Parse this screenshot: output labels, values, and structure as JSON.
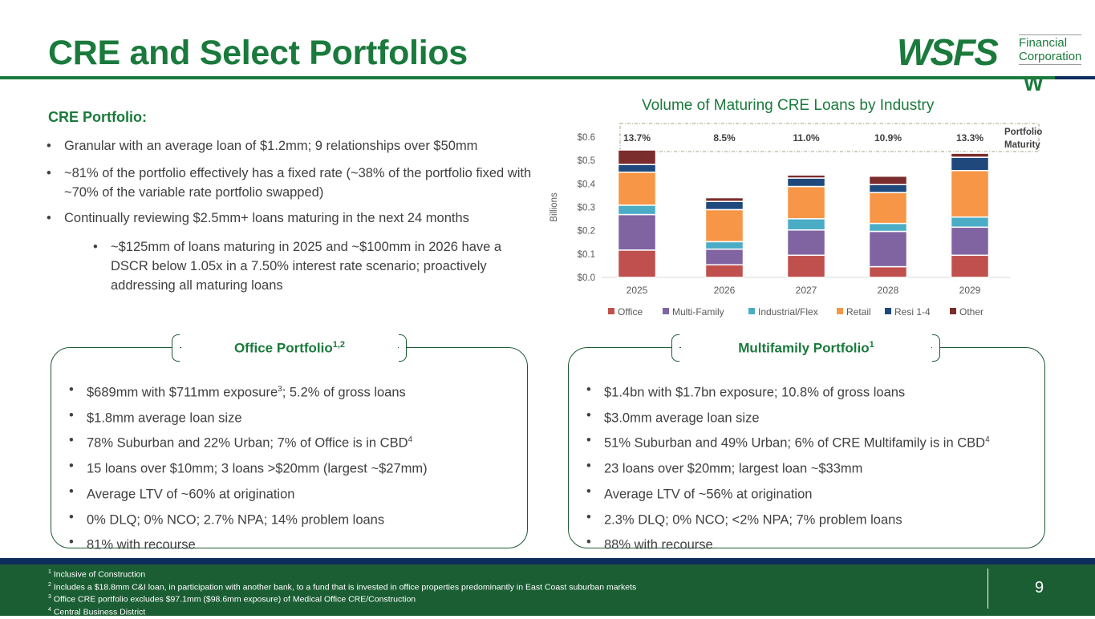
{
  "title": "CRE and Select Portfolios",
  "logo": {
    "brand": "WSFS",
    "sub1": "Financial",
    "sub2": "Corporation",
    "mark": "W"
  },
  "cre": {
    "heading": "CRE Portfolio:",
    "bullets": [
      "Granular with an average loan of $1.2mm; 9 relationships over $50mm",
      "~81% of the portfolio effectively has a fixed rate (~38% of the portfolio fixed with ~70% of the variable rate portfolio swapped)",
      "Continually reviewing $2.5mm+ loans maturing in the next 24 months",
      "~$125mm of loans maturing in 2025 and ~$100mm in 2026 have a DSCR below 1.05x in a 7.50% interest rate scenario; proactively addressing all maturing loans"
    ]
  },
  "office": {
    "heading": "Office Portfolio",
    "heading_sup": "1,2",
    "bullets": [
      {
        "t": "$689mm with $711mm exposure",
        "s": "3",
        "r": "; 5.2% of gross loans"
      },
      {
        "t": "$1.8mm average loan size",
        "s": "",
        "r": ""
      },
      {
        "t": "78% Suburban and 22% Urban; 7% of Office is in CBD",
        "s": "4",
        "r": ""
      },
      {
        "t": "15 loans over $10mm; 3 loans >$20mm (largest ~$27mm)",
        "s": "",
        "r": ""
      },
      {
        "t": "Average LTV of ~60% at origination",
        "s": "",
        "r": ""
      },
      {
        "t": "0% DLQ; 0% NCO; 2.7% NPA; 14% problem loans",
        "s": "",
        "r": ""
      },
      {
        "t": "81% with recourse",
        "s": "",
        "r": ""
      }
    ]
  },
  "multifamily": {
    "heading": "Multifamily Portfolio",
    "heading_sup": "1",
    "bullets": [
      {
        "t": "$1.4bn with $1.7bn exposure; 10.8% of gross loans",
        "s": "",
        "r": ""
      },
      {
        "t": "$3.0mm average loan size",
        "s": "",
        "r": ""
      },
      {
        "t": "51% Suburban and 49% Urban; 6% of CRE Multifamily is in CBD",
        "s": "4",
        "r": ""
      },
      {
        "t": "23 loans over $20mm; largest loan ~$33mm",
        "s": "",
        "r": ""
      },
      {
        "t": "Average LTV of ~56% at origination",
        "s": "",
        "r": ""
      },
      {
        "t": "2.3% DLQ; 0% NCO; <2% NPA; 7% problem loans",
        "s": "",
        "r": ""
      },
      {
        "t": "88% with recourse",
        "s": "",
        "r": ""
      }
    ]
  },
  "chart_data": {
    "type": "bar",
    "stacked": true,
    "title": "Volume of Maturing CRE Loans by Industry",
    "ylabel": "Billions",
    "ylim": [
      0,
      0.6
    ],
    "yticks": [
      "$0.0",
      "$0.1",
      "$0.2",
      "$0.3",
      "$0.4",
      "$0.5",
      "$0.6"
    ],
    "categories": [
      "2025",
      "2026",
      "2027",
      "2028",
      "2029"
    ],
    "series": [
      {
        "name": "Office",
        "color": "#C0504D",
        "values": [
          0.117,
          0.054,
          0.095,
          0.046,
          0.095
        ]
      },
      {
        "name": "Multi-Family",
        "color": "#8064A2",
        "values": [
          0.152,
          0.067,
          0.108,
          0.151,
          0.12
        ]
      },
      {
        "name": "Industrial/Flex",
        "color": "#4BACC6",
        "values": [
          0.04,
          0.032,
          0.048,
          0.034,
          0.043
        ]
      },
      {
        "name": "Retail",
        "color": "#F79646",
        "values": [
          0.141,
          0.137,
          0.138,
          0.132,
          0.199
        ]
      },
      {
        "name": "Resi 1-4",
        "color": "#1F497D",
        "values": [
          0.033,
          0.035,
          0.036,
          0.034,
          0.057
        ]
      },
      {
        "name": "Other",
        "color": "#7B2C2C",
        "values": [
          0.062,
          0.016,
          0.013,
          0.036,
          0.017
        ]
      }
    ],
    "maturity_label": [
      "Portfolio",
      "Maturity %"
    ],
    "maturity_pct": [
      "13.7%",
      "8.5%",
      "11.0%",
      "10.9%",
      "13.3%"
    ],
    "legend": "bottom"
  },
  "footnotes": [
    {
      "n": "1",
      "t": "Inclusive of Construction"
    },
    {
      "n": "2",
      "t": "Includes a $18.8mm C&I loan, in participation with another bank, to a fund that is invested in office properties predominantly in East Coast suburban markets"
    },
    {
      "n": "3",
      "t": "Office CRE portfolio excludes $97.1mm ($98.6mm exposure) of Medical Office CRE/Construction"
    },
    {
      "n": "4",
      "t": "Central Business District"
    }
  ],
  "page_number": "9"
}
